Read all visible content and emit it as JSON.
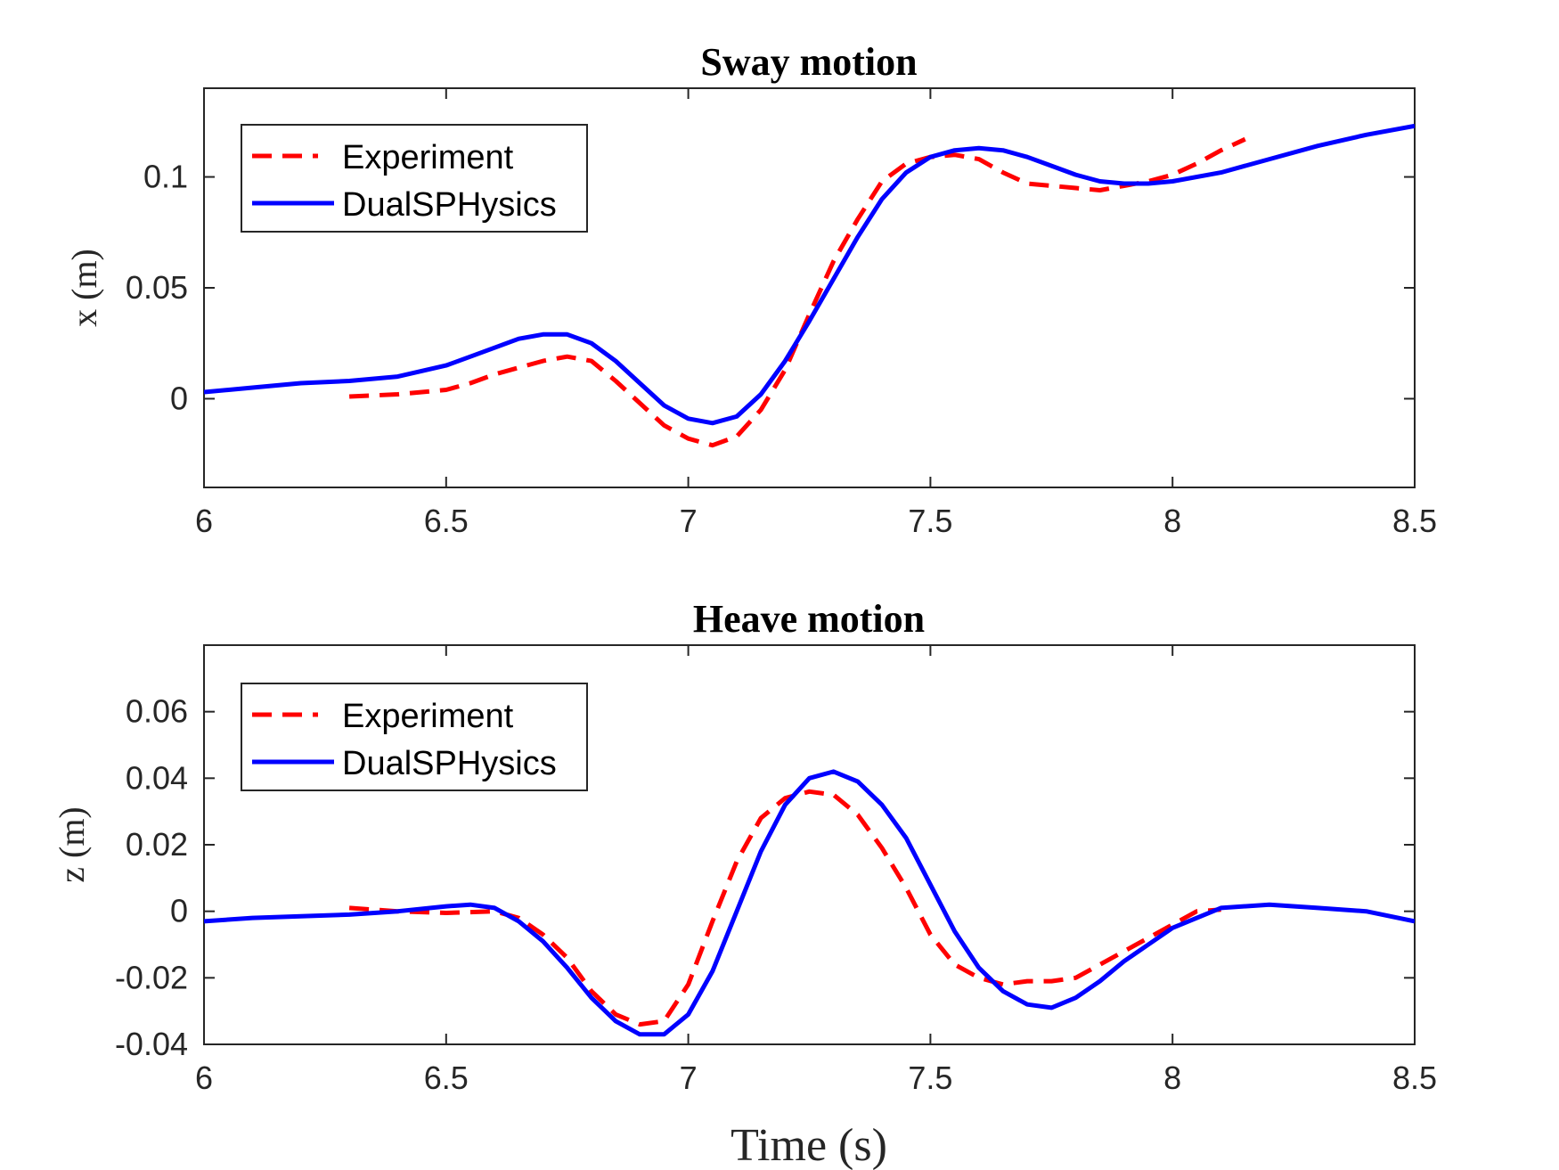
{
  "figure": {
    "xlabel": "Time (s)"
  },
  "colors": {
    "experiment": "#ff0000",
    "simulation": "#0000ff",
    "axis": "#262626"
  },
  "chart_data": [
    {
      "type": "line",
      "title": "Sway motion",
      "xlabel": "",
      "ylabel": "x (m)",
      "xlim": [
        6,
        8.5
      ],
      "ylim": [
        -0.04,
        0.14
      ],
      "xticks": [
        6,
        6.5,
        7,
        7.5,
        8,
        8.5
      ],
      "xtick_labels": [
        "6",
        "6.5",
        "7",
        "7.5",
        "8",
        "8.5"
      ],
      "yticks": [
        0,
        0.05,
        0.1
      ],
      "ytick_labels": [
        "0",
        "0.05",
        "0.1"
      ],
      "legend": {
        "position": "top-left",
        "entries": [
          "Experiment",
          "DualSPHysics"
        ]
      },
      "series": [
        {
          "name": "Experiment",
          "style": "dashed",
          "x": [
            6.3,
            6.4,
            6.5,
            6.55,
            6.6,
            6.65,
            6.7,
            6.75,
            6.8,
            6.85,
            6.9,
            6.95,
            7.0,
            7.05,
            7.1,
            7.15,
            7.2,
            7.25,
            7.3,
            7.35,
            7.4,
            7.45,
            7.5,
            7.55,
            7.6,
            7.65,
            7.7,
            7.75,
            7.8,
            7.85,
            7.9,
            7.95,
            8.0,
            8.05,
            8.1,
            8.15
          ],
          "y": [
            0.001,
            0.002,
            0.004,
            0.007,
            0.011,
            0.014,
            0.017,
            0.019,
            0.017,
            0.008,
            -0.002,
            -0.012,
            -0.018,
            -0.021,
            -0.017,
            -0.005,
            0.013,
            0.038,
            0.062,
            0.081,
            0.098,
            0.106,
            0.109,
            0.11,
            0.108,
            0.102,
            0.097,
            0.096,
            0.095,
            0.094,
            0.096,
            0.098,
            0.101,
            0.106,
            0.112,
            0.117
          ]
        },
        {
          "name": "DualSPHysics",
          "style": "solid",
          "x": [
            6.0,
            6.1,
            6.2,
            6.3,
            6.4,
            6.5,
            6.55,
            6.6,
            6.65,
            6.7,
            6.75,
            6.8,
            6.85,
            6.9,
            6.95,
            7.0,
            7.05,
            7.1,
            7.15,
            7.2,
            7.25,
            7.3,
            7.35,
            7.4,
            7.45,
            7.5,
            7.55,
            7.6,
            7.65,
            7.7,
            7.75,
            7.8,
            7.85,
            7.9,
            7.95,
            8.0,
            8.1,
            8.2,
            8.3,
            8.4,
            8.5
          ],
          "y": [
            0.003,
            0.005,
            0.007,
            0.008,
            0.01,
            0.015,
            0.019,
            0.023,
            0.027,
            0.029,
            0.029,
            0.025,
            0.017,
            0.007,
            -0.003,
            -0.009,
            -0.011,
            -0.008,
            0.002,
            0.017,
            0.035,
            0.054,
            0.073,
            0.09,
            0.102,
            0.109,
            0.112,
            0.113,
            0.112,
            0.109,
            0.105,
            0.101,
            0.098,
            0.097,
            0.097,
            0.098,
            0.102,
            0.108,
            0.114,
            0.119,
            0.123
          ]
        }
      ]
    },
    {
      "type": "line",
      "title": "Heave motion",
      "xlabel": "Time (s)",
      "ylabel": "z (m)",
      "xlim": [
        6,
        8.5
      ],
      "ylim": [
        -0.04,
        0.08
      ],
      "xticks": [
        6,
        6.5,
        7,
        7.5,
        8,
        8.5
      ],
      "xtick_labels": [
        "6",
        "6.5",
        "7",
        "7.5",
        "8",
        "8.5"
      ],
      "yticks": [
        -0.04,
        -0.02,
        0,
        0.02,
        0.04,
        0.06
      ],
      "ytick_labels": [
        "-0.04",
        "-0.02",
        "0",
        "0.02",
        "0.04",
        "0.06"
      ],
      "legend": {
        "position": "top-left",
        "entries": [
          "Experiment",
          "DualSPHysics"
        ]
      },
      "series": [
        {
          "name": "Experiment",
          "style": "dashed",
          "x": [
            6.3,
            6.4,
            6.5,
            6.6,
            6.65,
            6.7,
            6.75,
            6.8,
            6.85,
            6.9,
            6.95,
            7.0,
            7.05,
            7.1,
            7.15,
            7.2,
            7.25,
            7.3,
            7.35,
            7.4,
            7.45,
            7.5,
            7.55,
            7.6,
            7.65,
            7.7,
            7.75,
            7.8,
            7.9,
            8.0,
            8.05,
            8.1
          ],
          "y": [
            0.001,
            0.0,
            -0.0005,
            0.0,
            -0.002,
            -0.007,
            -0.014,
            -0.024,
            -0.031,
            -0.034,
            -0.033,
            -0.022,
            -0.003,
            0.015,
            0.028,
            0.034,
            0.036,
            0.035,
            0.029,
            0.019,
            0.007,
            -0.007,
            -0.016,
            -0.02,
            -0.022,
            -0.021,
            -0.021,
            -0.02,
            -0.012,
            -0.004,
            0.0,
            0.0005
          ]
        },
        {
          "name": "DualSPHysics",
          "style": "solid",
          "x": [
            6.0,
            6.1,
            6.2,
            6.3,
            6.4,
            6.5,
            6.55,
            6.6,
            6.65,
            6.7,
            6.75,
            6.8,
            6.85,
            6.9,
            6.95,
            7.0,
            7.05,
            7.1,
            7.15,
            7.2,
            7.25,
            7.3,
            7.35,
            7.4,
            7.45,
            7.5,
            7.55,
            7.6,
            7.65,
            7.7,
            7.75,
            7.8,
            7.85,
            7.9,
            7.95,
            8.0,
            8.1,
            8.2,
            8.3,
            8.4,
            8.5
          ],
          "y": [
            -0.003,
            -0.002,
            -0.0015,
            -0.001,
            0.0,
            0.0015,
            0.002,
            0.001,
            -0.003,
            -0.009,
            -0.017,
            -0.026,
            -0.033,
            -0.037,
            -0.037,
            -0.031,
            -0.018,
            0.0,
            0.018,
            0.032,
            0.04,
            0.042,
            0.039,
            0.032,
            0.022,
            0.008,
            -0.006,
            -0.017,
            -0.024,
            -0.028,
            -0.029,
            -0.026,
            -0.021,
            -0.015,
            -0.01,
            -0.005,
            0.001,
            0.002,
            0.001,
            0.0,
            -0.003
          ]
        }
      ]
    }
  ]
}
